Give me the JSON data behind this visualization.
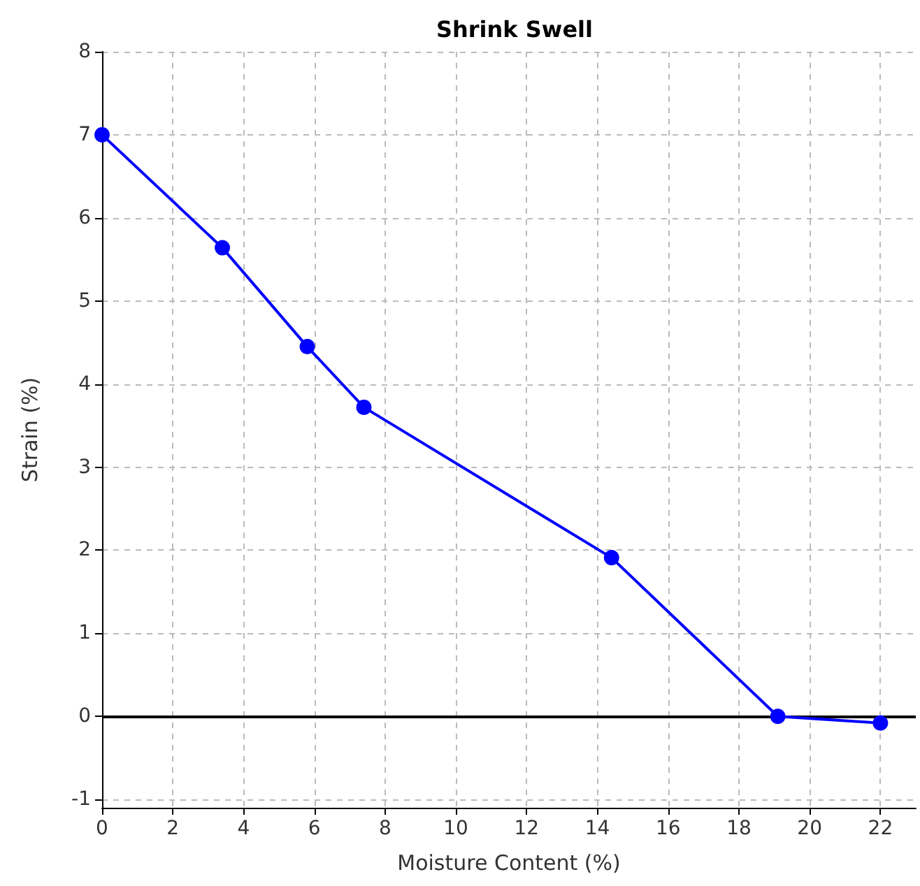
{
  "chart_data": {
    "type": "line",
    "title": "Shrink Swell",
    "xlabel": "Moisture Content (%)",
    "ylabel": "Strain (%)",
    "x": [
      0,
      3.4,
      5.8,
      7.4,
      14.4,
      19.1,
      22.0
    ],
    "series": [
      {
        "color": "#0000ff",
        "values": [
          7.0,
          5.64,
          4.45,
          3.72,
          1.91,
          0.0,
          -0.08
        ]
      }
    ],
    "xlim": [
      0,
      23
    ],
    "xticks": [
      0,
      2,
      4,
      6,
      8,
      10,
      12,
      14,
      16,
      18,
      20,
      22
    ],
    "ylim": [
      -1.1,
      8
    ],
    "yticks": [
      -1,
      0,
      1,
      2,
      3,
      4,
      5,
      6,
      7,
      8
    ],
    "grid": true,
    "marker": "circle",
    "line_style": "solid",
    "ref_lines": [
      {
        "axis": "y",
        "value": 0,
        "color": "#000000",
        "line_style": "solid"
      }
    ]
  }
}
